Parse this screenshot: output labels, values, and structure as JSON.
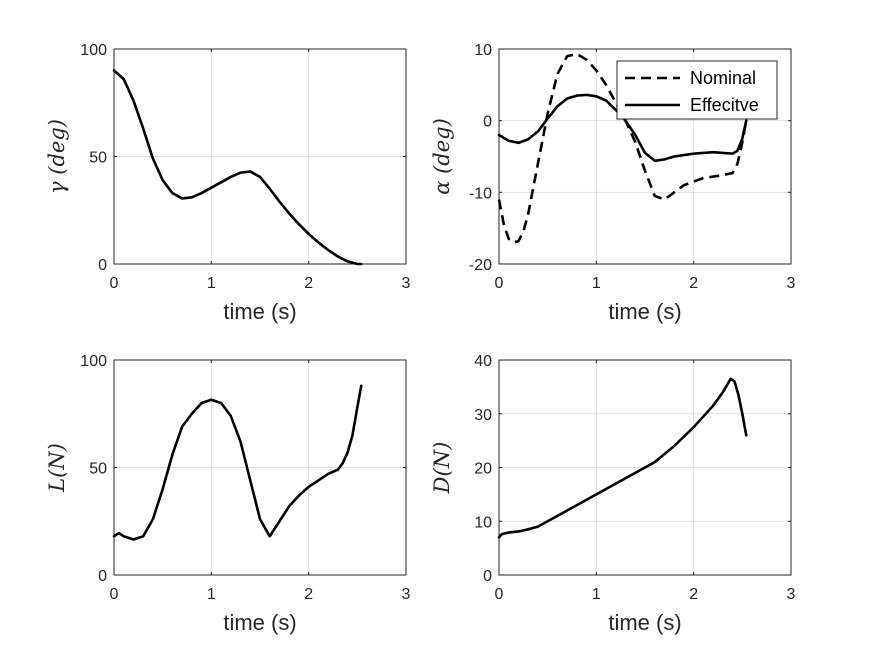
{
  "chart_data": [
    {
      "type": "line",
      "id": "gamma",
      "xlabel": "time (s)",
      "ylabel": "γ (deg)",
      "xlim": [
        0,
        3
      ],
      "ylim": [
        0,
        100
      ],
      "xticks": [
        0,
        1,
        2,
        3
      ],
      "yticks": [
        0,
        50,
        100
      ],
      "grid": true,
      "series": [
        {
          "name": "gamma",
          "style": "solid",
          "x": [
            0,
            0.1,
            0.2,
            0.3,
            0.4,
            0.5,
            0.6,
            0.7,
            0.8,
            0.9,
            1.0,
            1.1,
            1.2,
            1.3,
            1.4,
            1.5,
            1.6,
            1.7,
            1.8,
            1.9,
            2.0,
            2.1,
            2.2,
            2.3,
            2.4,
            2.5,
            2.54
          ],
          "y": [
            90,
            86,
            76,
            63,
            49,
            39,
            33,
            30.5,
            31,
            33,
            35.5,
            38,
            40.5,
            42.5,
            43,
            40.5,
            35,
            29,
            23.5,
            18.5,
            14,
            10,
            6.5,
            3.5,
            1.2,
            0,
            0
          ]
        }
      ]
    },
    {
      "type": "line",
      "id": "alpha",
      "xlabel": "time (s)",
      "ylabel": "α (deg)",
      "xlim": [
        0,
        3
      ],
      "ylim": [
        -20,
        10
      ],
      "xticks": [
        0,
        1,
        2,
        3
      ],
      "yticks": [
        -20,
        -10,
        0,
        10
      ],
      "grid": true,
      "legend": {
        "location": "top-right",
        "entries": [
          "Nominal",
          "Effecitve"
        ]
      },
      "series": [
        {
          "name": "Nominal",
          "style": "dashed",
          "x": [
            0,
            0.05,
            0.1,
            0.15,
            0.2,
            0.25,
            0.3,
            0.4,
            0.5,
            0.6,
            0.7,
            0.8,
            0.9,
            1.0,
            1.1,
            1.2,
            1.3,
            1.4,
            1.5,
            1.6,
            1.7,
            1.8,
            1.9,
            2.0,
            2.1,
            2.2,
            2.3,
            2.4,
            2.45,
            2.5,
            2.54
          ],
          "y": [
            -11,
            -14.5,
            -16.5,
            -17,
            -16.8,
            -15.5,
            -13,
            -6,
            1,
            6.5,
            9,
            9.3,
            8.5,
            7,
            5,
            2.5,
            0,
            -3,
            -7,
            -10.5,
            -11,
            -10,
            -9,
            -8.5,
            -8,
            -7.8,
            -7.6,
            -7.3,
            -6,
            -3,
            0
          ]
        },
        {
          "name": "Effecitve",
          "style": "solid",
          "x": [
            0,
            0.1,
            0.2,
            0.3,
            0.4,
            0.5,
            0.6,
            0.7,
            0.8,
            0.9,
            1.0,
            1.1,
            1.2,
            1.3,
            1.4,
            1.5,
            1.6,
            1.7,
            1.8,
            1.9,
            2.0,
            2.1,
            2.2,
            2.3,
            2.4,
            2.45,
            2.5,
            2.54
          ],
          "y": [
            -2,
            -2.8,
            -3.1,
            -2.6,
            -1.5,
            0.3,
            2,
            3.1,
            3.5,
            3.6,
            3.4,
            2.8,
            1.5,
            0,
            -2,
            -4.5,
            -5.6,
            -5.4,
            -5,
            -4.8,
            -4.6,
            -4.5,
            -4.4,
            -4.5,
            -4.6,
            -4.2,
            -2.5,
            0
          ]
        }
      ]
    },
    {
      "type": "line",
      "id": "lift",
      "xlabel": "time (s)",
      "ylabel": "L(N)",
      "xlim": [
        0,
        3
      ],
      "ylim": [
        0,
        100
      ],
      "xticks": [
        0,
        1,
        2,
        3
      ],
      "yticks": [
        0,
        50,
        100
      ],
      "grid": true,
      "series": [
        {
          "name": "L",
          "style": "solid",
          "x": [
            0,
            0.05,
            0.1,
            0.2,
            0.3,
            0.4,
            0.5,
            0.6,
            0.7,
            0.8,
            0.9,
            1.0,
            1.1,
            1.2,
            1.3,
            1.4,
            1.5,
            1.6,
            1.7,
            1.8,
            1.9,
            2.0,
            2.1,
            2.2,
            2.3,
            2.35,
            2.4,
            2.45,
            2.5,
            2.54
          ],
          "y": [
            18,
            19.5,
            18,
            16.5,
            18,
            26,
            40,
            56,
            69,
            75,
            80,
            81.5,
            80,
            74,
            62,
            44,
            26,
            18,
            25,
            32,
            37,
            41,
            44,
            47,
            49,
            52,
            57,
            65,
            78,
            88
          ]
        }
      ]
    },
    {
      "type": "line",
      "id": "drag",
      "xlabel": "time (s)",
      "ylabel": "D(N)",
      "xlim": [
        0,
        3
      ],
      "ylim": [
        0,
        40
      ],
      "xticks": [
        0,
        1,
        2,
        3
      ],
      "yticks": [
        0,
        10,
        20,
        30,
        40
      ],
      "grid": true,
      "series": [
        {
          "name": "D",
          "style": "solid",
          "x": [
            0,
            0.03,
            0.1,
            0.2,
            0.3,
            0.4,
            0.6,
            0.8,
            1.0,
            1.2,
            1.4,
            1.6,
            1.8,
            2.0,
            2.2,
            2.3,
            2.38,
            2.42,
            2.46,
            2.5,
            2.54
          ],
          "y": [
            7,
            7.6,
            7.9,
            8.1,
            8.5,
            9,
            11,
            13,
            15,
            17,
            19,
            21,
            24,
            27.5,
            31.5,
            34,
            36.5,
            36,
            33.5,
            30,
            26
          ]
        }
      ]
    }
  ]
}
